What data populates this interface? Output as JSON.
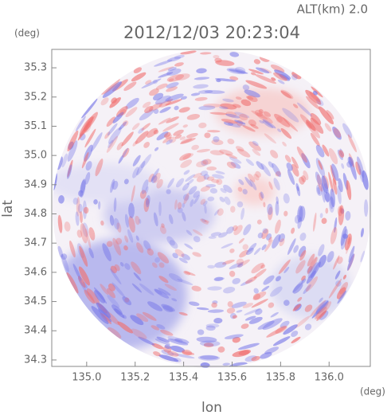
{
  "chart_data": {
    "type": "radar-image",
    "title": "2012/12/03 20:23:04",
    "annotation": "ALT(km)  2.0",
    "xlabel": "lon",
    "ylabel": "lat",
    "xunit": "(deg)",
    "yunit": "(deg)",
    "xlim": [
      134.856,
      136.17
    ],
    "ylim": [
      34.278,
      35.363
    ],
    "xticks": [
      {
        "value": 135.0,
        "label": "135.0"
      },
      135.2,
      135.4,
      135.6,
      135.8,
      {
        "value": 136.0,
        "label": "136.0"
      }
    ],
    "yticks": [
      {
        "value": 34.3,
        "label": "34.3"
      },
      34.4,
      34.5,
      34.6,
      34.7,
      34.8,
      34.9,
      {
        "value": 35.0,
        "label": "35.0"
      },
      35.1,
      35.2,
      35.3
    ]
  }
}
